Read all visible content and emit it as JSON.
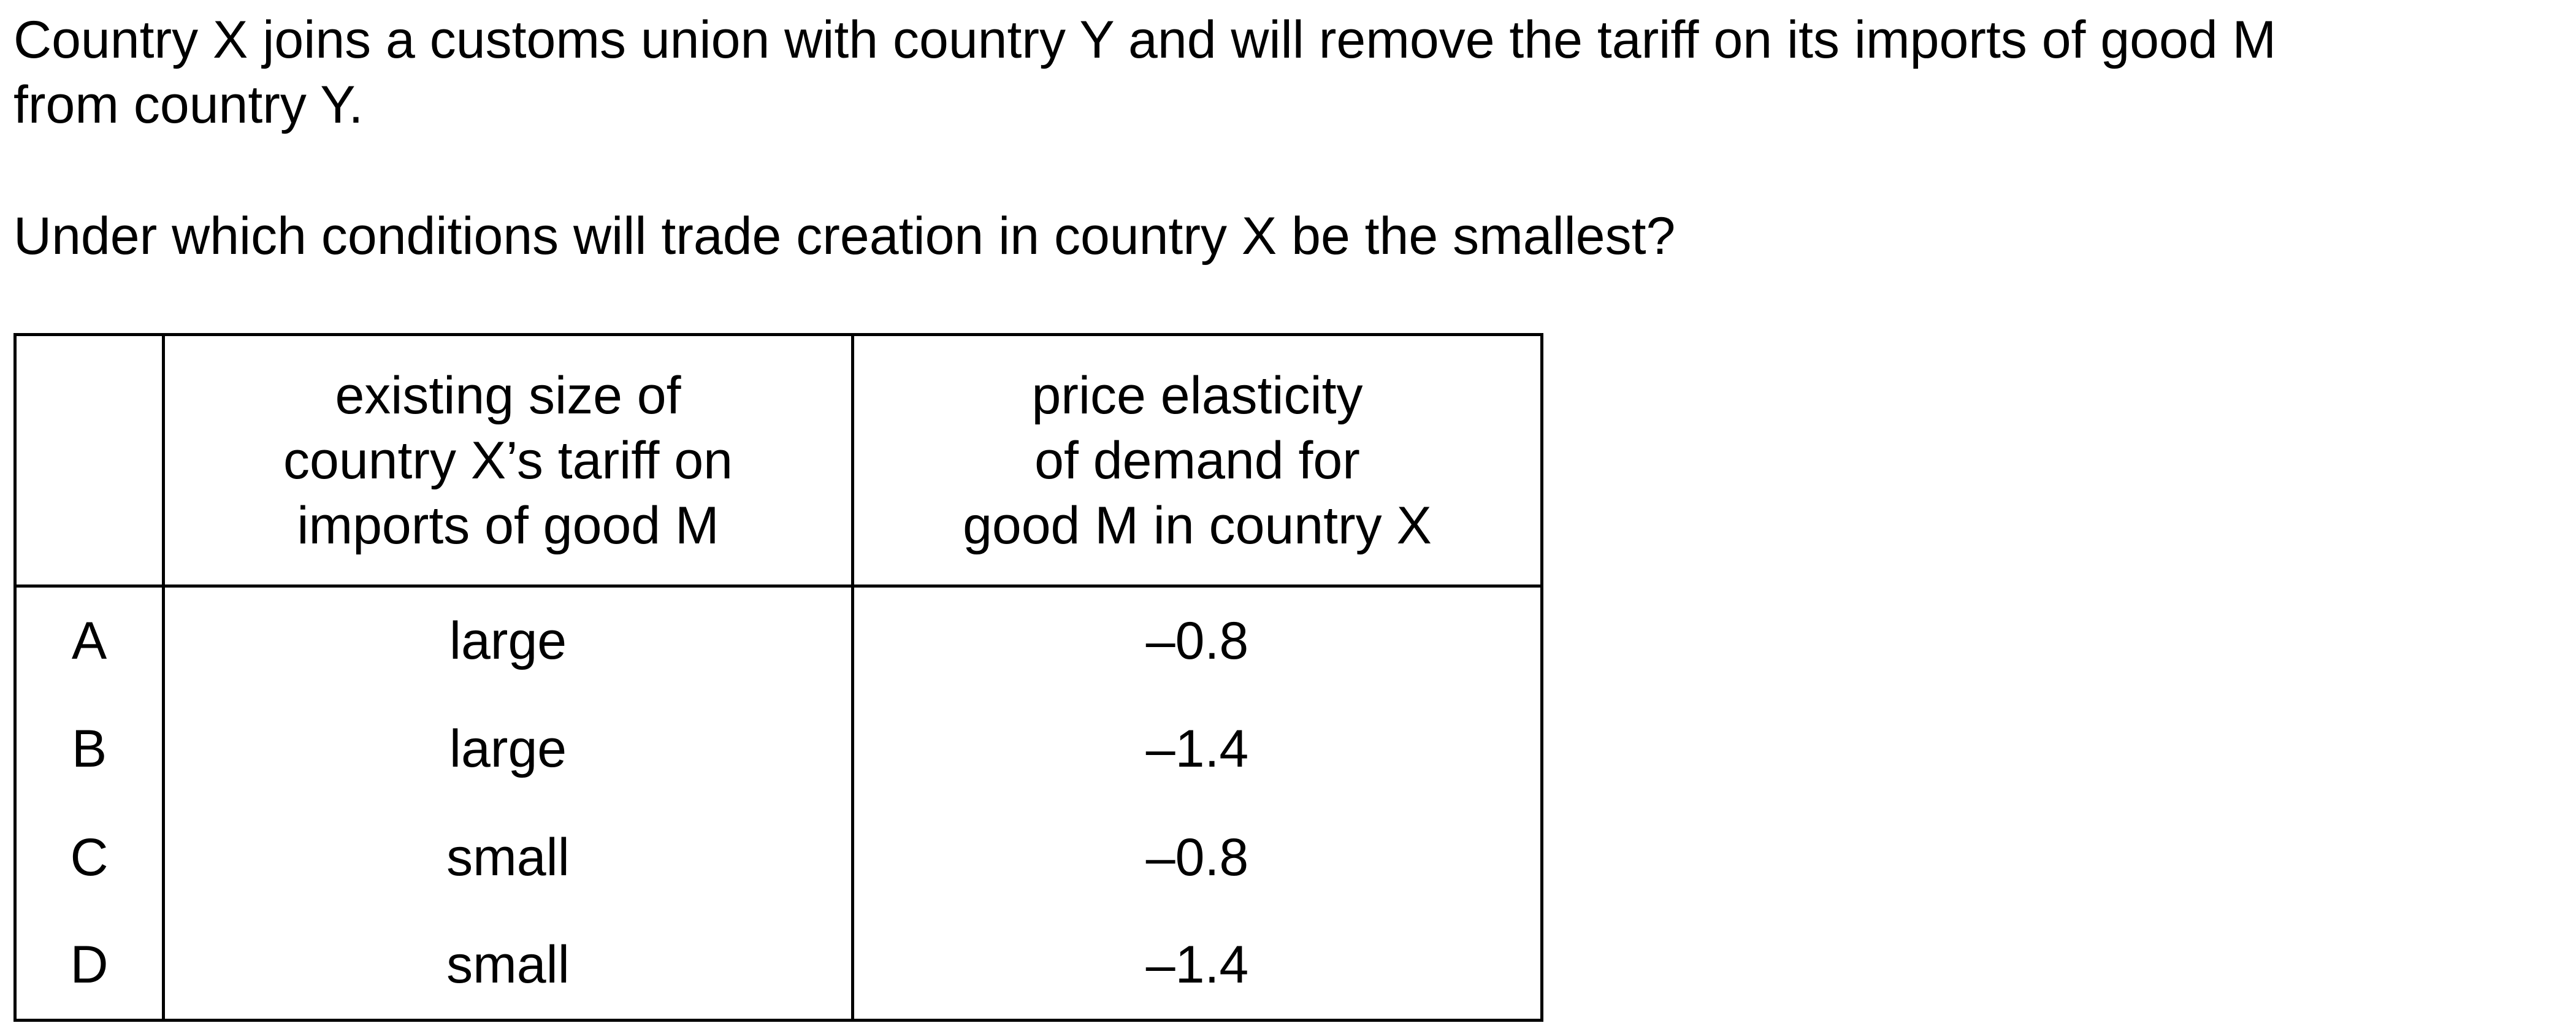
{
  "stem": {
    "line1": "Country X joins a customs union with country Y and will remove the tariff on its imports of good M",
    "line2": "from country Y."
  },
  "question": "Under which conditions will trade creation in country X be the smallest?",
  "table": {
    "headers": {
      "tariff": [
        "existing size of",
        "country X’s tariff on",
        "imports of good M"
      ],
      "elasticity": [
        "price elasticity",
        "of demand for",
        "good M in country X"
      ]
    },
    "rows": [
      {
        "letter": "A",
        "tariff": "large",
        "elasticity": "–0.8"
      },
      {
        "letter": "B",
        "tariff": "large",
        "elasticity": "–1.4"
      },
      {
        "letter": "C",
        "tariff": "small",
        "elasticity": "–0.8"
      },
      {
        "letter": "D",
        "tariff": "small",
        "elasticity": "–1.4"
      }
    ]
  }
}
